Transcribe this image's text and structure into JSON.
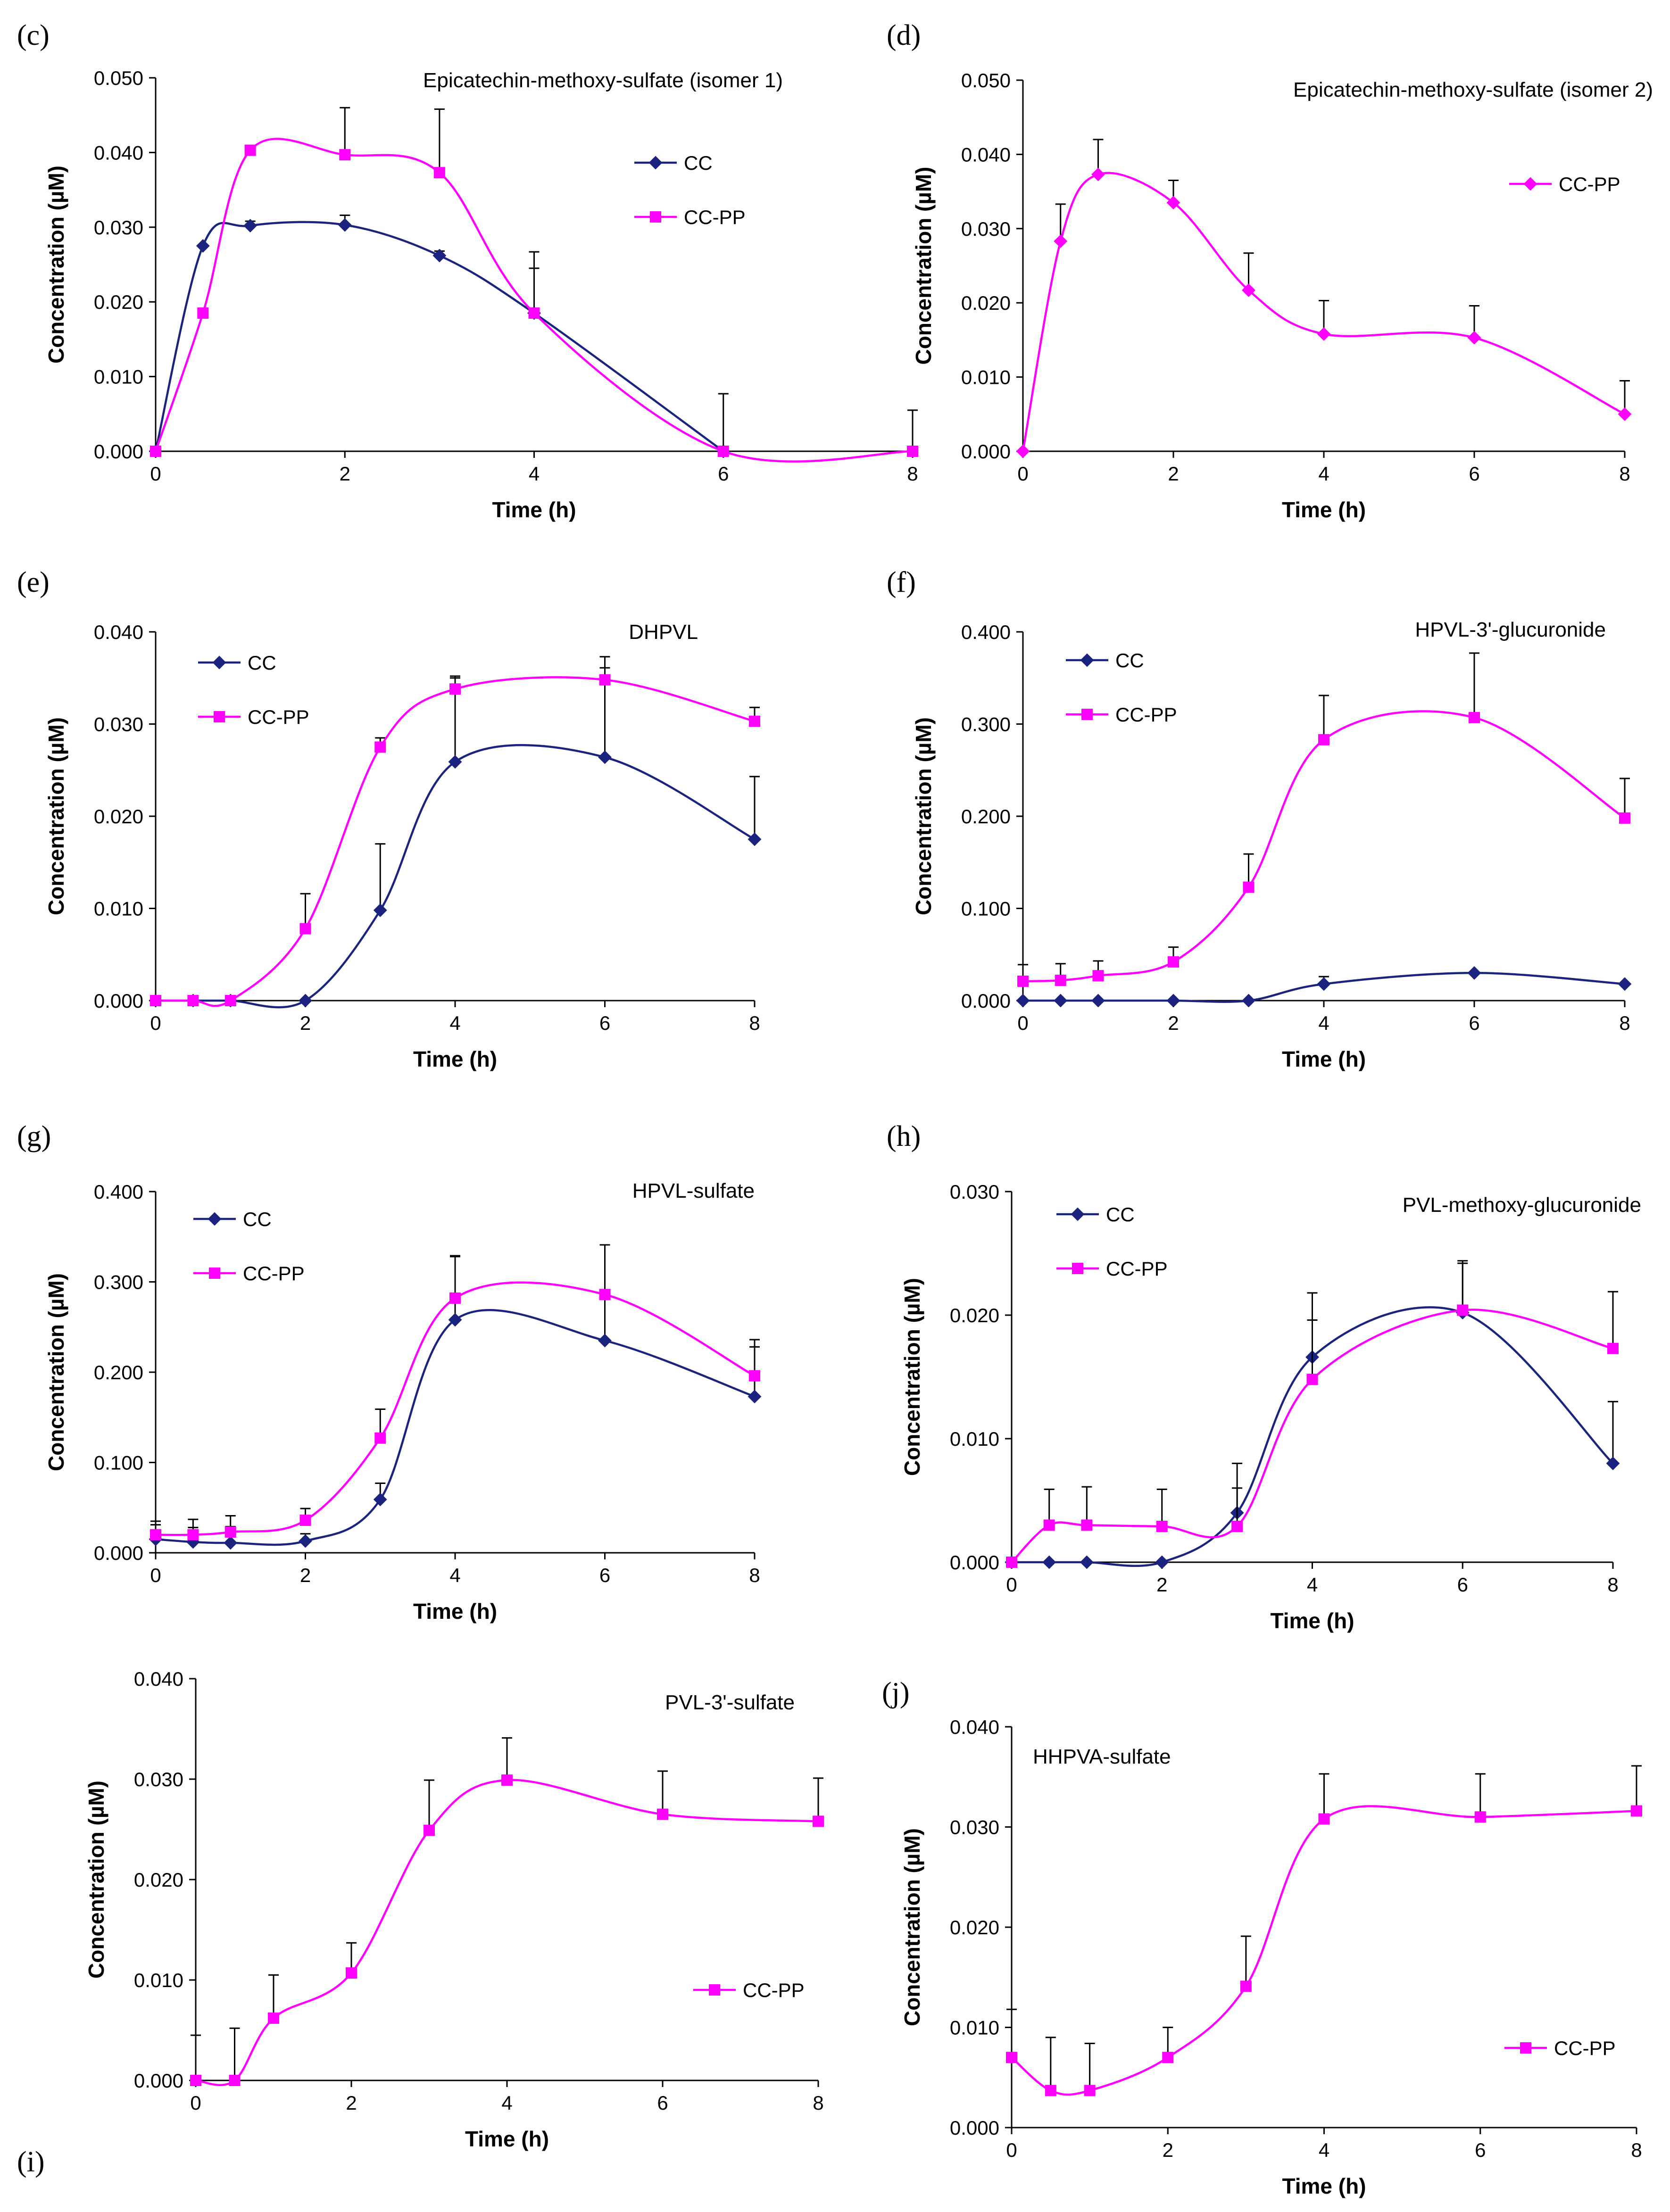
{
  "colors": {
    "cc": "#1a237e",
    "cc_pp": "#ff00ff",
    "axis": "#000000"
  },
  "chart_data": [
    {
      "id": "c",
      "panel_label": "(c)",
      "type": "line",
      "title": "Epicatechin-methoxy-sulfate  (isomer 1)",
      "xlabel": "Time (h)",
      "ylabel": "Concentration (µM)",
      "xlim": [
        0,
        8
      ],
      "ylim": [
        0,
        0.05
      ],
      "xticks": [
        "0",
        "2",
        "4",
        "6",
        "8"
      ],
      "yticks": [
        "0.000",
        "0.010",
        "0.020",
        "0.030",
        "0.040",
        "0.050"
      ],
      "legend": [
        "CC",
        "CC-PP"
      ],
      "series": [
        {
          "name": "CC",
          "color": "#1a237e",
          "marker": "diamond",
          "x": [
            0,
            0.5,
            1,
            2,
            3,
            4,
            6
          ],
          "y": [
            0,
            0.0275,
            0.0302,
            0.0303,
            0.0262,
            0.0185,
            0
          ],
          "err": [
            0,
            0,
            0.0006,
            0.0013,
            0.0006,
            0.006,
            0
          ]
        },
        {
          "name": "CC-PP",
          "color": "#ff00ff",
          "marker": "square",
          "x": [
            0,
            0.5,
            1,
            2,
            3,
            4,
            6,
            8
          ],
          "y": [
            0,
            0.0185,
            0.0403,
            0.0397,
            0.0373,
            0.0185,
            0,
            0
          ],
          "err": [
            0,
            0,
            0,
            0.0063,
            0.0085,
            0.0082,
            0.0077,
            0.0055
          ]
        }
      ]
    },
    {
      "id": "d",
      "panel_label": "(d)",
      "type": "line",
      "title": "Epicatechin-methoxy-sulfate  (isomer 2)",
      "xlabel": "Time (h)",
      "ylabel": "Concentration (µM)",
      "xlim": [
        0,
        8
      ],
      "ylim": [
        0,
        0.05
      ],
      "xticks": [
        "0",
        "2",
        "4",
        "6",
        "8"
      ],
      "yticks": [
        "0.000",
        "0.010",
        "0.020",
        "0.030",
        "0.040",
        "0.050"
      ],
      "legend": [
        "CC-PP"
      ],
      "series": [
        {
          "name": "CC-PP",
          "color": "#ff00ff",
          "marker": "diamond",
          "x": [
            0,
            0.5,
            1,
            2,
            3,
            4,
            6,
            8
          ],
          "y": [
            0,
            0.0283,
            0.0373,
            0.0335,
            0.0217,
            0.0158,
            0.0153,
            0.005
          ],
          "err": [
            0,
            0.005,
            0.0047,
            0.003,
            0.005,
            0.0045,
            0.0043,
            0.0045
          ]
        }
      ]
    },
    {
      "id": "e",
      "panel_label": "(e)",
      "type": "line",
      "title": "DHPVL",
      "xlabel": "Time (h)",
      "ylabel": "Concentration (µM)",
      "xlim": [
        0,
        8
      ],
      "ylim": [
        0,
        0.04
      ],
      "xticks": [
        "0",
        "2",
        "4",
        "6",
        "8"
      ],
      "yticks": [
        "0.000",
        "0.010",
        "0.020",
        "0.030",
        "0.040"
      ],
      "legend": [
        "CC",
        "CC-PP"
      ],
      "series": [
        {
          "name": "CC",
          "color": "#1a237e",
          "marker": "diamond",
          "x": [
            0,
            0.5,
            1,
            2,
            3,
            4,
            6,
            8
          ],
          "y": [
            0,
            0,
            0,
            0,
            0.0098,
            0.0259,
            0.0264,
            0.0175
          ],
          "err": [
            0,
            0,
            0,
            0,
            0.0072,
            0.0093,
            0.0097,
            0.0068
          ]
        },
        {
          "name": "CC-PP",
          "color": "#ff00ff",
          "marker": "square",
          "x": [
            0,
            0.5,
            1,
            2,
            3,
            4,
            6,
            8
          ],
          "y": [
            0,
            0,
            0,
            0.0078,
            0.0275,
            0.0338,
            0.0348,
            0.0303
          ],
          "err": [
            0,
            0,
            0,
            0.0038,
            0.001,
            0.0012,
            0.0025,
            0.0015
          ]
        }
      ]
    },
    {
      "id": "f",
      "panel_label": "(f)",
      "type": "line",
      "title": "HPVL-3'-glucuronide",
      "xlabel": "Time (h)",
      "ylabel": "Concentration (µM)",
      "xlim": [
        0,
        8
      ],
      "ylim": [
        0,
        0.4
      ],
      "xticks": [
        "0",
        "2",
        "4",
        "6",
        "8"
      ],
      "yticks": [
        "0.000",
        "0.100",
        "0.200",
        "0.300",
        "0.400"
      ],
      "legend": [
        "CC",
        "CC-PP"
      ],
      "series": [
        {
          "name": "CC",
          "color": "#1a237e",
          "marker": "diamond",
          "x": [
            0,
            0.5,
            1,
            2,
            3,
            4,
            6,
            8
          ],
          "y": [
            0,
            0,
            0,
            0,
            0,
            0.018,
            0.03,
            0.018
          ],
          "err": [
            0,
            0,
            0,
            0,
            0,
            0.008,
            0,
            0
          ]
        },
        {
          "name": "CC-PP",
          "color": "#ff00ff",
          "marker": "square",
          "x": [
            0,
            0.5,
            1,
            2,
            3,
            4,
            6,
            8
          ],
          "y": [
            0.021,
            0.022,
            0.027,
            0.042,
            0.123,
            0.283,
            0.307,
            0.198
          ],
          "err": [
            0.018,
            0.018,
            0.016,
            0.016,
            0.036,
            0.048,
            0.07,
            0.043
          ]
        }
      ]
    },
    {
      "id": "g",
      "panel_label": "(g)",
      "type": "line",
      "title": "HPVL-sulfate",
      "xlabel": "Time (h)",
      "ylabel": "Concentration (µM)",
      "xlim": [
        0,
        8
      ],
      "ylim": [
        0,
        0.4
      ],
      "xticks": [
        "0",
        "2",
        "4",
        "6",
        "8"
      ],
      "yticks": [
        "0.000",
        "0.100",
        "0.200",
        "0.300",
        "0.400"
      ],
      "legend": [
        "CC",
        "CC-PP"
      ],
      "series": [
        {
          "name": "CC",
          "color": "#1a237e",
          "marker": "diamond",
          "x": [
            0,
            0.5,
            1,
            2,
            3,
            4,
            6,
            8
          ],
          "y": [
            0.015,
            0.012,
            0.011,
            0.013,
            0.059,
            0.258,
            0.235,
            0.173
          ],
          "err": [
            0.016,
            0.016,
            0.018,
            0.008,
            0.018,
            0.07,
            0.052,
            0.055
          ]
        },
        {
          "name": "CC-PP",
          "color": "#ff00ff",
          "marker": "square",
          "x": [
            0,
            0.5,
            1,
            2,
            3,
            4,
            6,
            8
          ],
          "y": [
            0.02,
            0.02,
            0.023,
            0.036,
            0.127,
            0.282,
            0.286,
            0.196
          ],
          "err": [
            0.015,
            0.017,
            0.018,
            0.013,
            0.032,
            0.047,
            0.055,
            0.04
          ]
        }
      ]
    },
    {
      "id": "h",
      "panel_label": "(h)",
      "type": "line",
      "title": "PVL-methoxy-glucuronide",
      "xlabel": "Time (h)",
      "ylabel": "Concentration (µM)",
      "xlim": [
        0,
        8
      ],
      "ylim": [
        0,
        0.03
      ],
      "xticks": [
        "0",
        "2",
        "4",
        "6",
        "8"
      ],
      "yticks": [
        "0.000",
        "0.010",
        "0.020",
        "0.030"
      ],
      "legend": [
        "CC",
        "CC-PP"
      ],
      "series": [
        {
          "name": "CC",
          "color": "#1a237e",
          "marker": "diamond",
          "x": [
            0,
            0.5,
            1,
            2,
            3,
            4,
            6,
            8
          ],
          "y": [
            0,
            0,
            0,
            0,
            0.004,
            0.0166,
            0.0202,
            0.008
          ],
          "err": [
            0,
            0,
            0,
            0,
            0.004,
            0.003,
            0.004,
            0.005
          ]
        },
        {
          "name": "CC-PP",
          "color": "#ff00ff",
          "marker": "square",
          "x": [
            0,
            0.5,
            1,
            2,
            3,
            4,
            6,
            8
          ],
          "y": [
            0,
            0.003,
            0.003,
            0.0029,
            0.0029,
            0.0148,
            0.0204,
            0.0173
          ],
          "err": [
            0,
            0.0029,
            0.0031,
            0.003,
            0.0031,
            0.007,
            0.004,
            0.0046
          ]
        }
      ]
    },
    {
      "id": "i",
      "panel_label": "(i)",
      "type": "line",
      "title": "PVL-3'-sulfate",
      "xlabel": "Time (h)",
      "ylabel": "Concentration (µM)",
      "xlim": [
        0,
        8
      ],
      "ylim": [
        0,
        0.04
      ],
      "xticks": [
        "0",
        "2",
        "4",
        "6",
        "8"
      ],
      "yticks": [
        "0.000",
        "0.010",
        "0.020",
        "0.030",
        "0.040"
      ],
      "legend": [
        "CC-PP"
      ],
      "series": [
        {
          "name": "CC-PP",
          "color": "#ff00ff",
          "marker": "square",
          "x": [
            0,
            0.5,
            1,
            2,
            3,
            4,
            6,
            8
          ],
          "y": [
            0,
            0,
            0.0062,
            0.0107,
            0.0249,
            0.0299,
            0.0265,
            0.0258
          ],
          "err": [
            0.0045,
            0.0052,
            0.0043,
            0.003,
            0.005,
            0.0042,
            0.0043,
            0.0043
          ]
        }
      ]
    },
    {
      "id": "j",
      "panel_label": "(j)",
      "type": "line",
      "title": "HHPVA-sulfate",
      "xlabel": "Time (h)",
      "ylabel": "Concentration (µM)",
      "xlim": [
        0,
        8
      ],
      "ylim": [
        0,
        0.04
      ],
      "xticks": [
        "0",
        "2",
        "4",
        "6",
        "8"
      ],
      "yticks": [
        "0.000",
        "0.010",
        "0.020",
        "0.030",
        "0.040"
      ],
      "legend": [
        "CC-PP"
      ],
      "series": [
        {
          "name": "CC-PP",
          "color": "#ff00ff",
          "marker": "square",
          "x": [
            0,
            0.5,
            1,
            2,
            3,
            4,
            6,
            8
          ],
          "y": [
            0.007,
            0.0037,
            0.0037,
            0.007,
            0.0141,
            0.0308,
            0.031,
            0.0316
          ],
          "err": [
            0.0048,
            0.0053,
            0.0047,
            0.003,
            0.005,
            0.0045,
            0.0043,
            0.0045
          ]
        }
      ]
    }
  ]
}
